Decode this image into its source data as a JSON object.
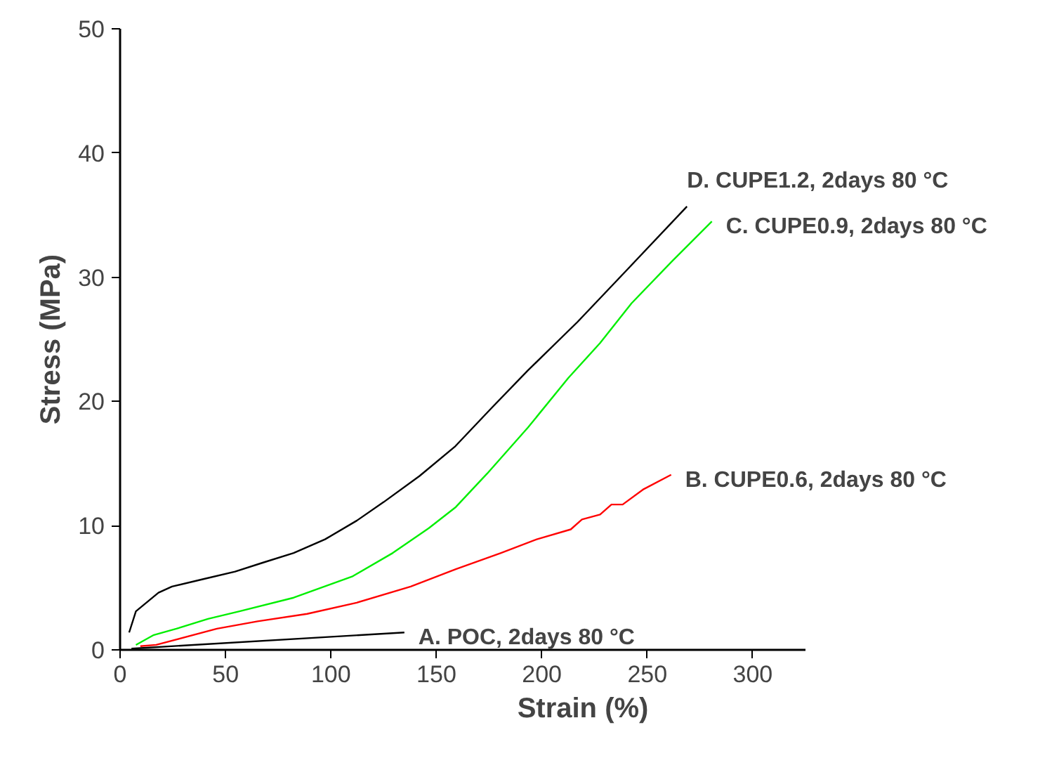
{
  "chart_data": {
    "type": "line",
    "xlabel": "Strain (%)",
    "ylabel": "Stress (MPa)",
    "xlim": [
      0,
      325
    ],
    "ylim": [
      0,
      50
    ],
    "xticks": [
      0,
      50,
      100,
      150,
      200,
      250,
      300
    ],
    "yticks": [
      0,
      10,
      20,
      30,
      40,
      50
    ],
    "grid": false,
    "legend": false,
    "marker": "none",
    "line_style": "solid",
    "series": [
      {
        "name": "D. CUPE1.2, 2days 80 °C",
        "color": "#000000",
        "x": [
          4.3,
          7.5,
          18.2,
          24.6,
          39.5,
          54.5,
          67.3,
          82.3,
          97.2,
          112.2,
          125,
          142,
          159,
          176.3,
          193.4,
          216.9,
          240.4,
          268.8
        ],
        "values": [
          1.4,
          3.1,
          4.6,
          5.1,
          5.7,
          6.3,
          7.0,
          7.8,
          8.9,
          10.4,
          11.9,
          14.0,
          16.4,
          19.5,
          22.5,
          26.4,
          30.6,
          35.7
        ]
      },
      {
        "name": "C. CUPE0.9, 2days 80 °C",
        "color": "#00ee00",
        "x": [
          7.5,
          16.0,
          26.7,
          41.7,
          56.6,
          82.3,
          110,
          129.3,
          146.4,
          159.2,
          174.1,
          193.4,
          212.6,
          227.6,
          242.5,
          261.8,
          280.6
        ],
        "values": [
          0.4,
          1.2,
          1.7,
          2.5,
          3.1,
          4.2,
          5.9,
          7.8,
          9.8,
          11.5,
          14.2,
          17.9,
          21.9,
          24.7,
          27.9,
          31.3,
          34.5
        ]
      },
      {
        "name": "B. CUPE0.6, 2days 80 °C",
        "color": "#ff0000",
        "x": [
          9.6,
          17.1,
          45.9,
          65.2,
          88.7,
          112.2,
          137.8,
          159.2,
          180.6,
          197.6,
          213.7,
          219.0,
          227.6,
          233,
          238.3,
          247.9,
          261.3
        ],
        "values": [
          0.3,
          0.4,
          1.7,
          2.3,
          2.9,
          3.8,
          5.1,
          6.5,
          7.8,
          8.9,
          9.7,
          10.5,
          10.9,
          11.7,
          11.7,
          12.9,
          14.1
        ]
      },
      {
        "name": "A. POC, 2days 80 °C",
        "color": "#000000",
        "x": [
          5.4,
          134.8
        ],
        "values": [
          0.1,
          1.4
        ]
      }
    ]
  }
}
